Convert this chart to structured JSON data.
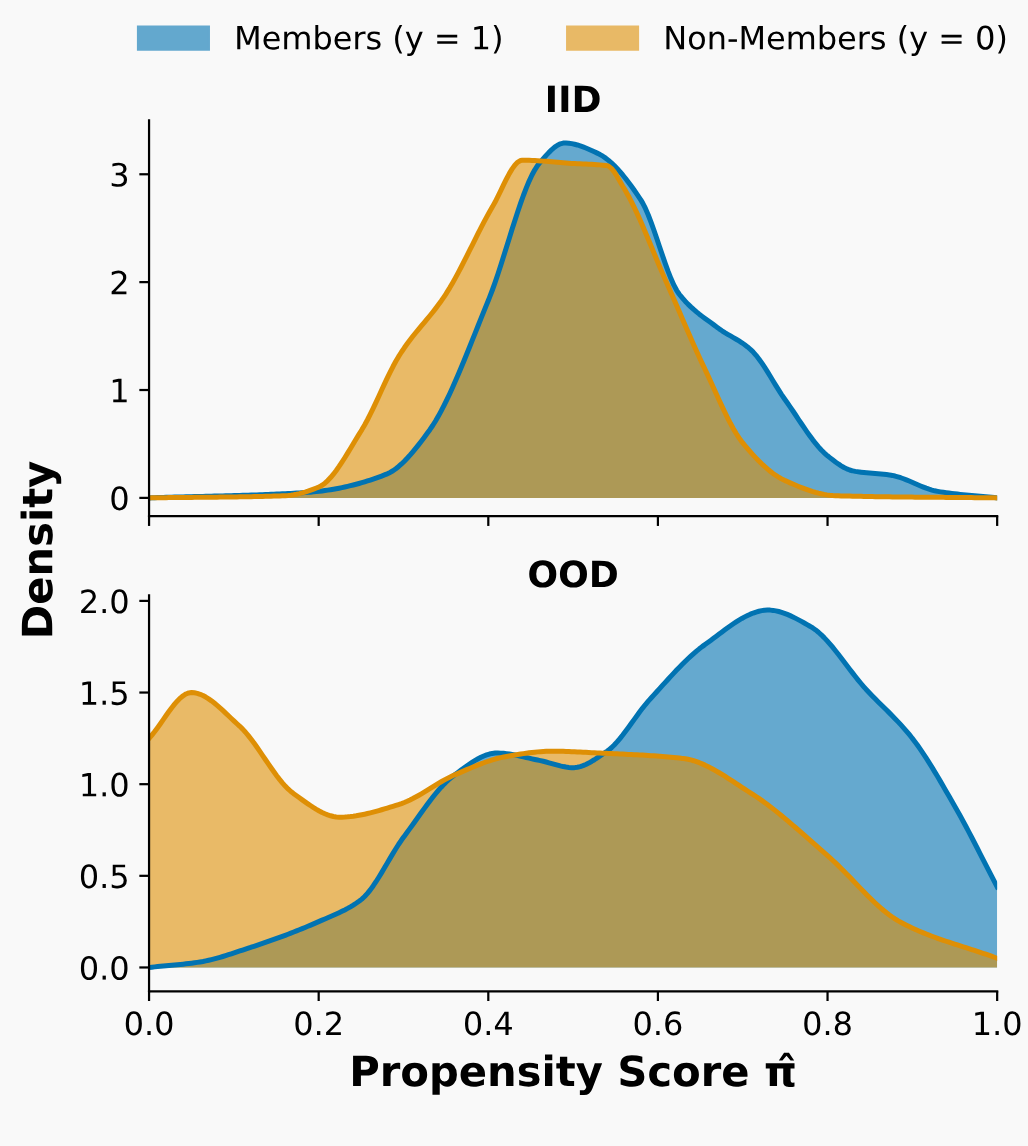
{
  "chart_data": [
    {
      "type": "area",
      "title": "IID",
      "ylabel": "Density",
      "legend": "top",
      "grid": false,
      "tick_labels": "y",
      "xlim": [
        0,
        1
      ],
      "xticks": [
        0,
        0.2,
        0.4,
        0.6,
        0.8,
        1.0
      ],
      "ylim": [
        -0.17,
        3.5
      ],
      "yticks": [
        0,
        1,
        2,
        3
      ],
      "series": [
        {
          "name": "Members (y = 1)",
          "color": "#0173b2",
          "x": [
            0,
            0.185,
            0.28,
            0.33,
            0.4,
            0.46,
            0.49,
            0.53,
            0.58,
            0.625,
            0.67,
            0.71,
            0.75,
            0.8,
            0.83,
            0.875,
            0.93,
            1.0
          ],
          "values": [
            0,
            0.05,
            0.22,
            0.62,
            1.83,
            3.1,
            3.29,
            3.19,
            2.76,
            1.89,
            1.58,
            1.37,
            0.91,
            0.39,
            0.25,
            0.21,
            0.06,
            0
          ]
        },
        {
          "name": "Non-Members (y = 0)",
          "color": "#de8f05",
          "x": [
            0,
            0.16,
            0.2,
            0.25,
            0.295,
            0.35,
            0.405,
            0.44,
            0.5,
            0.54,
            0.56,
            0.61,
            0.655,
            0.7,
            0.75,
            0.81,
            1.0
          ],
          "values": [
            0,
            0.02,
            0.1,
            0.62,
            1.32,
            1.89,
            2.7,
            3.13,
            3.1,
            3.08,
            2.87,
            2.0,
            1.2,
            0.51,
            0.16,
            0.02,
            0
          ]
        }
      ]
    },
    {
      "type": "area",
      "title": "OOD",
      "xlabel": "Propensity Score π̂",
      "grid": false,
      "xlim": [
        0,
        1
      ],
      "xticks": [
        {
          "value": 0,
          "label": "0.0"
        },
        0.2,
        0.4,
        0.6,
        0.8,
        {
          "value": 1,
          "label": "1.0"
        }
      ],
      "ylim": [
        -0.13,
        2.03
      ],
      "yticks": [
        {
          "value": 0,
          "label": "0.0"
        },
        0.5,
        {
          "value": 1,
          "label": "1.0"
        },
        1.5,
        {
          "value": 2,
          "label": "2.0"
        }
      ],
      "series": [
        {
          "color": "#0173b2",
          "x": [
            0,
            0.06,
            0.12,
            0.2,
            0.25,
            0.3,
            0.36,
            0.41,
            0.46,
            0.5,
            0.54,
            0.59,
            0.655,
            0.73,
            0.78,
            0.845,
            0.9,
            0.95,
            1.0
          ],
          "values": [
            0,
            0.03,
            0.11,
            0.25,
            0.37,
            0.71,
            1.05,
            1.17,
            1.13,
            1.09,
            1.18,
            1.46,
            1.76,
            1.95,
            1.86,
            1.52,
            1.25,
            0.88,
            0.44
          ]
        },
        {
          "color": "#de8f05",
          "x": [
            0,
            0.05,
            0.106,
            0.17,
            0.225,
            0.295,
            0.36,
            0.42,
            0.475,
            0.53,
            0.63,
            0.71,
            0.8,
            0.885,
            1.0
          ],
          "values": [
            1.25,
            1.5,
            1.32,
            0.95,
            0.82,
            0.89,
            1.05,
            1.15,
            1.18,
            1.17,
            1.14,
            0.95,
            0.61,
            0.25,
            0.05
          ]
        }
      ]
    }
  ]
}
